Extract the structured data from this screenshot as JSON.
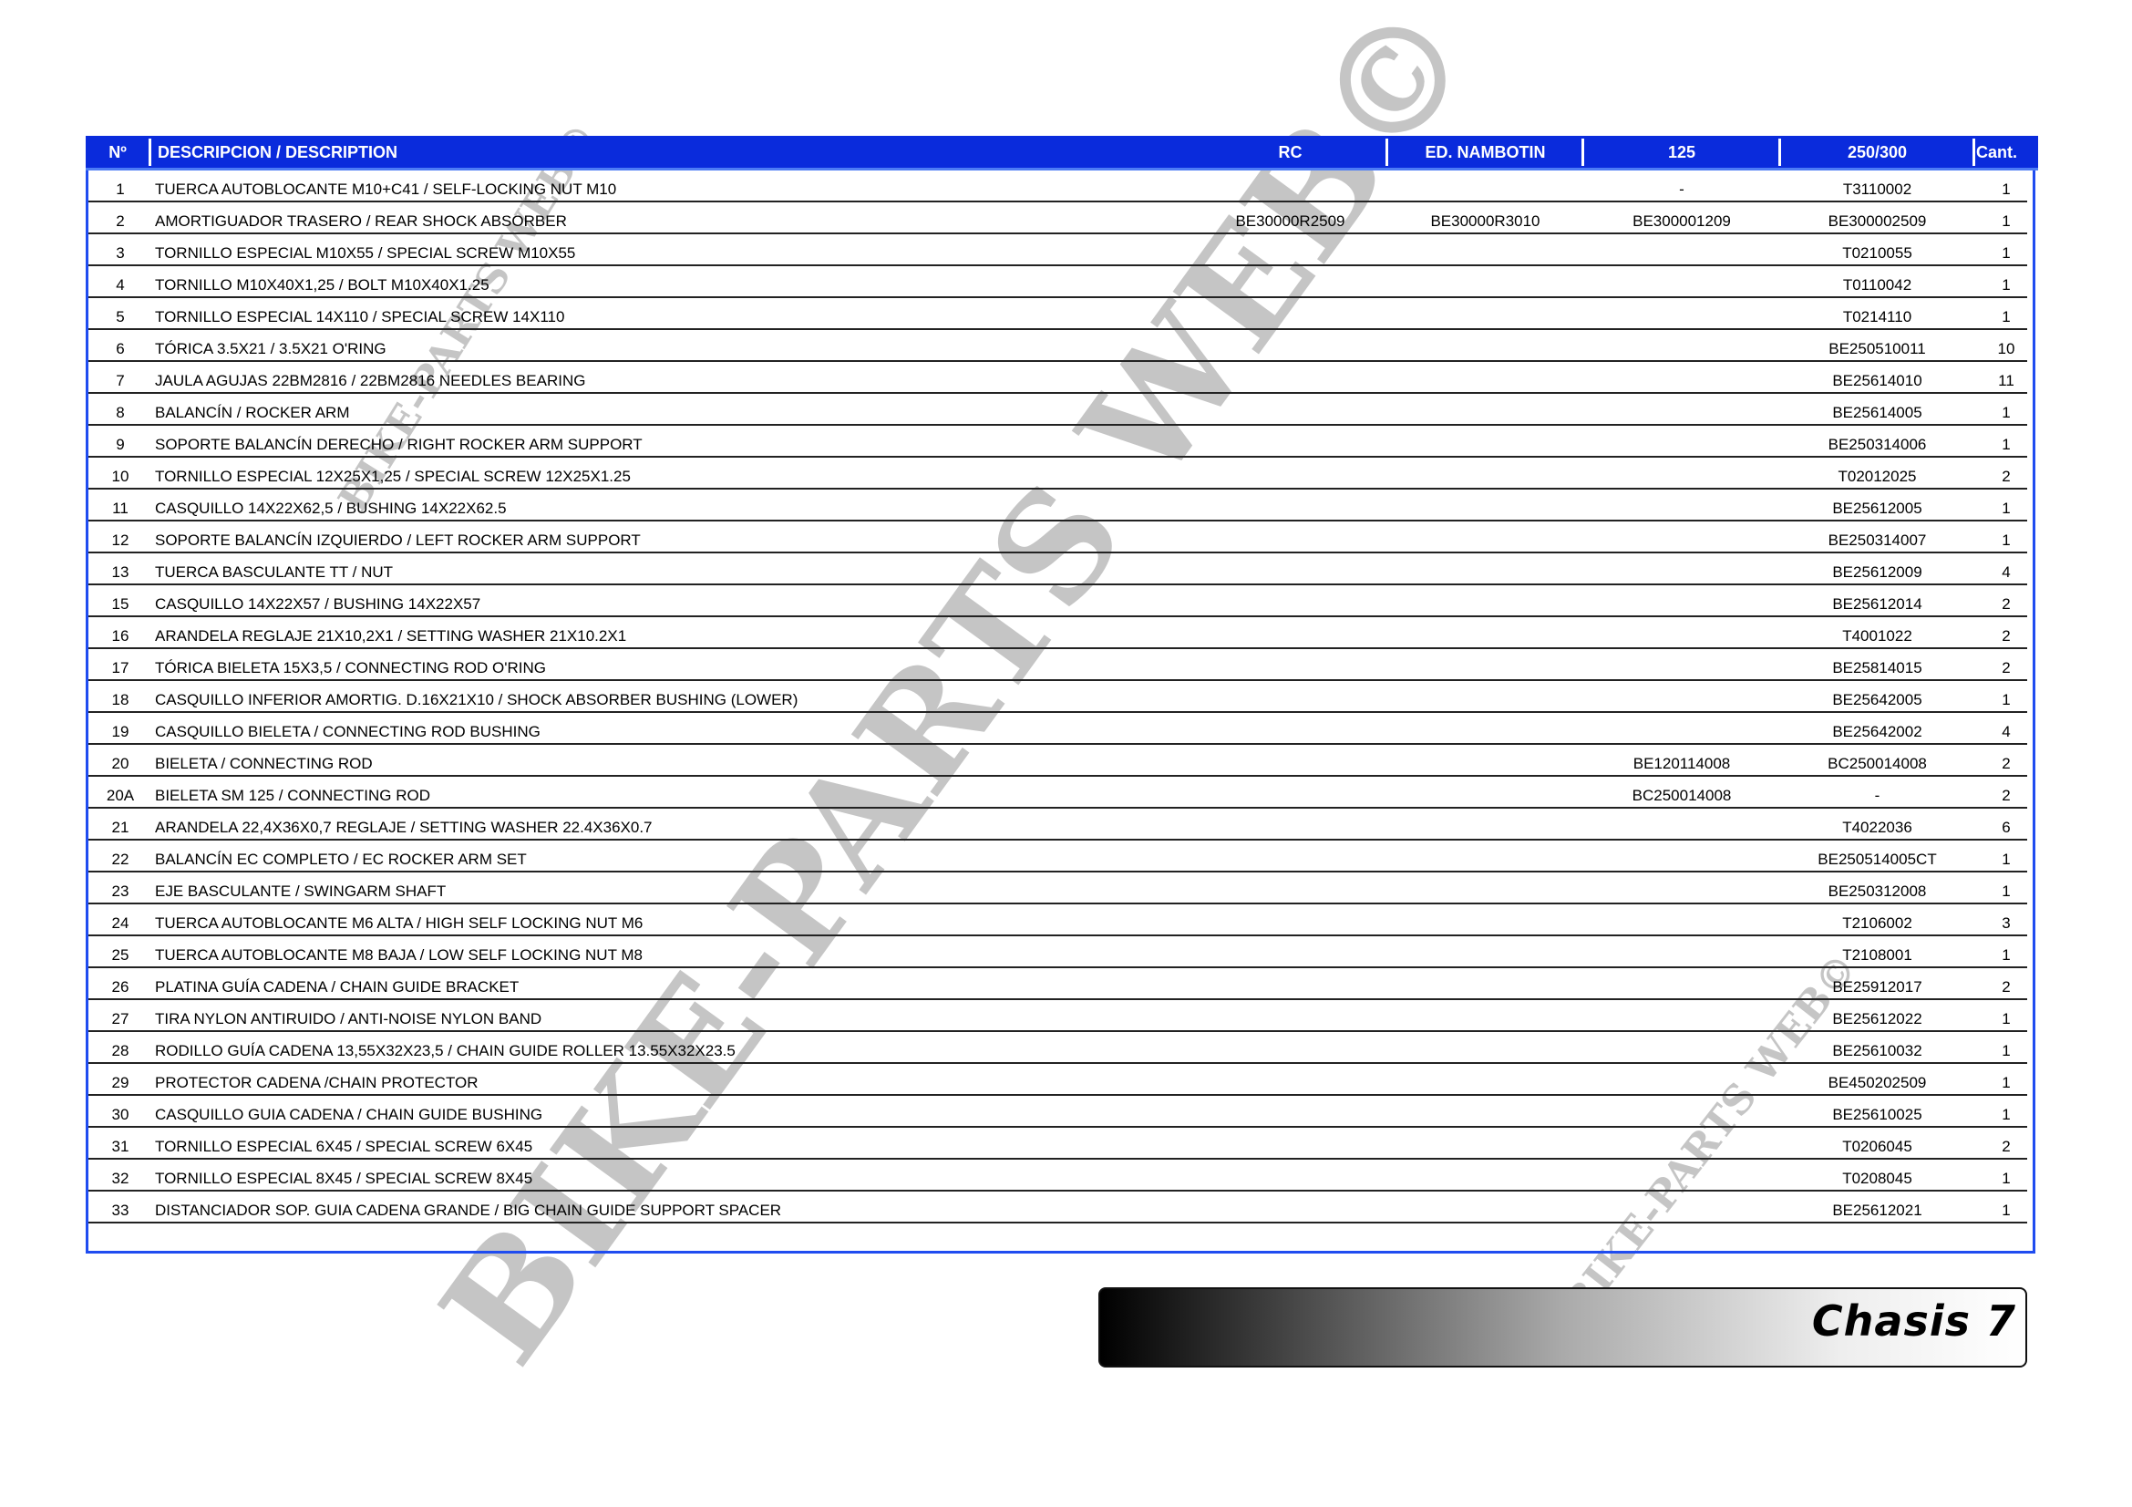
{
  "header": {
    "no": "Nº",
    "description": "DESCRIPCION / DESCRIPTION",
    "rc": "RC",
    "ed": "ED. NAMBOTIN",
    "c125": "125",
    "c250": "250/300",
    "cant": "Cant."
  },
  "rows": [
    {
      "no": "1",
      "desc": "TUERCA AUTOBLOCANTE M10+C41 / SELF-LOCKING NUT M10",
      "rc": "",
      "ed": "",
      "c125": "-",
      "c250": "T3110002",
      "cant": "1"
    },
    {
      "no": "2",
      "desc": "AMORTIGUADOR TRASERO / REAR SHOCK ABSORBER",
      "rc": "BE30000R2509",
      "ed": "BE30000R3010",
      "c125": "BE300001209",
      "c250": "BE300002509",
      "cant": "1"
    },
    {
      "no": "3",
      "desc": "TORNILLO ESPECIAL M10X55 / SPECIAL SCREW M10X55",
      "rc": "",
      "ed": "",
      "c125": "",
      "c250": "T0210055",
      "cant": "1"
    },
    {
      "no": "4",
      "desc": "TORNILLO M10X40X1,25 / BOLT M10X40X1.25",
      "rc": "",
      "ed": "",
      "c125": "",
      "c250": "T0110042",
      "cant": "1"
    },
    {
      "no": "5",
      "desc": "TORNILLO ESPECIAL 14X110 / SPECIAL SCREW 14X110",
      "rc": "",
      "ed": "",
      "c125": "",
      "c250": "T0214110",
      "cant": "1"
    },
    {
      "no": "6",
      "desc": "TÓRICA 3.5X21 / 3.5X21 O'RING",
      "rc": "",
      "ed": "",
      "c125": "",
      "c250": "BE250510011",
      "cant": "10"
    },
    {
      "no": "7",
      "desc": "JAULA AGUJAS 22BM2816 / 22BM2816 NEEDLES BEARING",
      "rc": "",
      "ed": "",
      "c125": "",
      "c250": "BE25614010",
      "cant": "11"
    },
    {
      "no": "8",
      "desc": "BALANCÍN / ROCKER ARM",
      "rc": "",
      "ed": "",
      "c125": "",
      "c250": "BE25614005",
      "cant": "1"
    },
    {
      "no": "9",
      "desc": "SOPORTE BALANCÍN DERECHO / RIGHT ROCKER ARM SUPPORT",
      "rc": "",
      "ed": "",
      "c125": "",
      "c250": "BE250314006",
      "cant": "1"
    },
    {
      "no": "10",
      "desc": "TORNILLO ESPECIAL 12X25X1,25 / SPECIAL SCREW 12X25X1.25",
      "rc": "",
      "ed": "",
      "c125": "",
      "c250": "T02012025",
      "cant": "2"
    },
    {
      "no": "11",
      "desc": "CASQUILLO 14X22X62,5 / BUSHING 14X22X62.5",
      "rc": "",
      "ed": "",
      "c125": "",
      "c250": "BE25612005",
      "cant": "1"
    },
    {
      "no": "12",
      "desc": "SOPORTE BALANCÍN IZQUIERDO / LEFT ROCKER ARM SUPPORT",
      "rc": "",
      "ed": "",
      "c125": "",
      "c250": "BE250314007",
      "cant": "1"
    },
    {
      "no": "13",
      "desc": "TUERCA BASCULANTE TT / NUT",
      "rc": "",
      "ed": "",
      "c125": "",
      "c250": "BE25612009",
      "cant": "4"
    },
    {
      "no": "15",
      "desc": "CASQUILLO 14X22X57 / BUSHING 14X22X57",
      "rc": "",
      "ed": "",
      "c125": "",
      "c250": "BE25612014",
      "cant": "2"
    },
    {
      "no": "16",
      "desc": "ARANDELA REGLAJE 21X10,2X1 / SETTING WASHER 21X10.2X1",
      "rc": "",
      "ed": "",
      "c125": "",
      "c250": "T4001022",
      "cant": "2"
    },
    {
      "no": "17",
      "desc": "TÓRICA BIELETA 15X3,5 / CONNECTING ROD O'RING",
      "rc": "",
      "ed": "",
      "c125": "",
      "c250": "BE25814015",
      "cant": "2"
    },
    {
      "no": "18",
      "desc": "CASQUILLO INFERIOR AMORTIG. D.16X21X10 / SHOCK ABSORBER BUSHING (LOWER)",
      "rc": "",
      "ed": "",
      "c125": "",
      "c250": "BE25642005",
      "cant": "1"
    },
    {
      "no": "19",
      "desc": "CASQUILLO BIELETA / CONNECTING ROD BUSHING",
      "rc": "",
      "ed": "",
      "c125": "",
      "c250": "BE25642002",
      "cant": "4"
    },
    {
      "no": "20",
      "desc": "BIELETA / CONNECTING ROD",
      "rc": "",
      "ed": "",
      "c125": "BE120114008",
      "c250": "BC250014008",
      "cant": "2"
    },
    {
      "no": "20A",
      "desc": "BIELETA SM 125 / CONNECTING ROD",
      "rc": "",
      "ed": "",
      "c125": "BC250014008",
      "c250": "-",
      "cant": "2"
    },
    {
      "no": "21",
      "desc": "ARANDELA 22,4X36X0,7 REGLAJE / SETTING WASHER 22.4X36X0.7",
      "rc": "",
      "ed": "",
      "c125": "",
      "c250": "T4022036",
      "cant": "6"
    },
    {
      "no": "22",
      "desc": "BALANCÍN EC COMPLETO / EC ROCKER ARM SET",
      "rc": "",
      "ed": "",
      "c125": "",
      "c250": "BE250514005CT",
      "cant": "1"
    },
    {
      "no": "23",
      "desc": "EJE BASCULANTE / SWINGARM SHAFT",
      "rc": "",
      "ed": "",
      "c125": "",
      "c250": "BE250312008",
      "cant": "1"
    },
    {
      "no": "24",
      "desc": "TUERCA AUTOBLOCANTE M6 ALTA / HIGH SELF LOCKING NUT M6",
      "rc": "",
      "ed": "",
      "c125": "",
      "c250": "T2106002",
      "cant": "3"
    },
    {
      "no": "25",
      "desc": "TUERCA AUTOBLOCANTE M8 BAJA / LOW SELF LOCKING NUT M8",
      "rc": "",
      "ed": "",
      "c125": "",
      "c250": "T2108001",
      "cant": "1"
    },
    {
      "no": "26",
      "desc": "PLATINA GUÍA CADENA / CHAIN GUIDE BRACKET",
      "rc": "",
      "ed": "",
      "c125": "",
      "c250": "BE25912017",
      "cant": "2"
    },
    {
      "no": "27",
      "desc": "TIRA NYLON ANTIRUIDO / ANTI-NOISE NYLON BAND",
      "rc": "",
      "ed": "",
      "c125": "",
      "c250": "BE25612022",
      "cant": "1"
    },
    {
      "no": "28",
      "desc": "RODILLO GUÍA CADENA 13,55X32X23,5 / CHAIN GUIDE ROLLER 13.55X32X23.5",
      "rc": "",
      "ed": "",
      "c125": "",
      "c250": "BE25610032",
      "cant": "1"
    },
    {
      "no": "29",
      "desc": "PROTECTOR CADENA /CHAIN PROTECTOR",
      "rc": "",
      "ed": "",
      "c125": "",
      "c250": "BE450202509",
      "cant": "1"
    },
    {
      "no": "30",
      "desc": "CASQUILLO GUIA CADENA / CHAIN GUIDE BUSHING",
      "rc": "",
      "ed": "",
      "c125": "",
      "c250": "BE25610025",
      "cant": "1"
    },
    {
      "no": "31",
      "desc": "TORNILLO ESPECIAL 6X45 / SPECIAL SCREW 6X45",
      "rc": "",
      "ed": "",
      "c125": "",
      "c250": "T0206045",
      "cant": "2"
    },
    {
      "no": "32",
      "desc": "TORNILLO ESPECIAL 8X45 / SPECIAL SCREW 8X45",
      "rc": "",
      "ed": "",
      "c125": "",
      "c250": "T0208045",
      "cant": "1"
    },
    {
      "no": "33",
      "desc": "DISTANCIADOR SOP. GUIA CADENA GRANDE / BIG CHAIN GUIDE SUPPORT SPACER",
      "rc": "",
      "ed": "",
      "c125": "",
      "c250": "BE25612021",
      "cant": "1"
    }
  ],
  "banner": {
    "title": "Chasis 7"
  },
  "watermark": {
    "text": "BIKE-PARTS WEB©"
  },
  "colors": {
    "header_bg": "#0a2bdc",
    "border": "#1f4cf0",
    "watermark": "#969696"
  }
}
